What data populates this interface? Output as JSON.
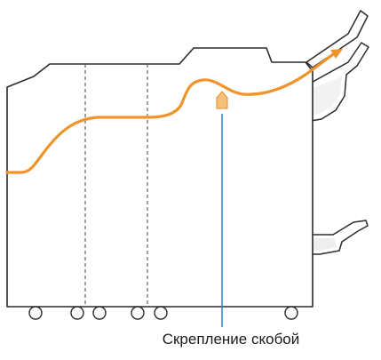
{
  "caption": "Скрепление скобой",
  "colors": {
    "outline": "#2b2b2b",
    "paper_path": "#f0932b",
    "staple_marker_fill": "#f7c17a",
    "staple_marker_stroke": "#e08a28",
    "pointer_line": "#1e8fc8",
    "divider": "#555555",
    "wheel_fill": "#ffffff"
  },
  "icons": {
    "staple_marker": "staple-position-icon",
    "arrow": "paper-exit-arrow-icon"
  }
}
